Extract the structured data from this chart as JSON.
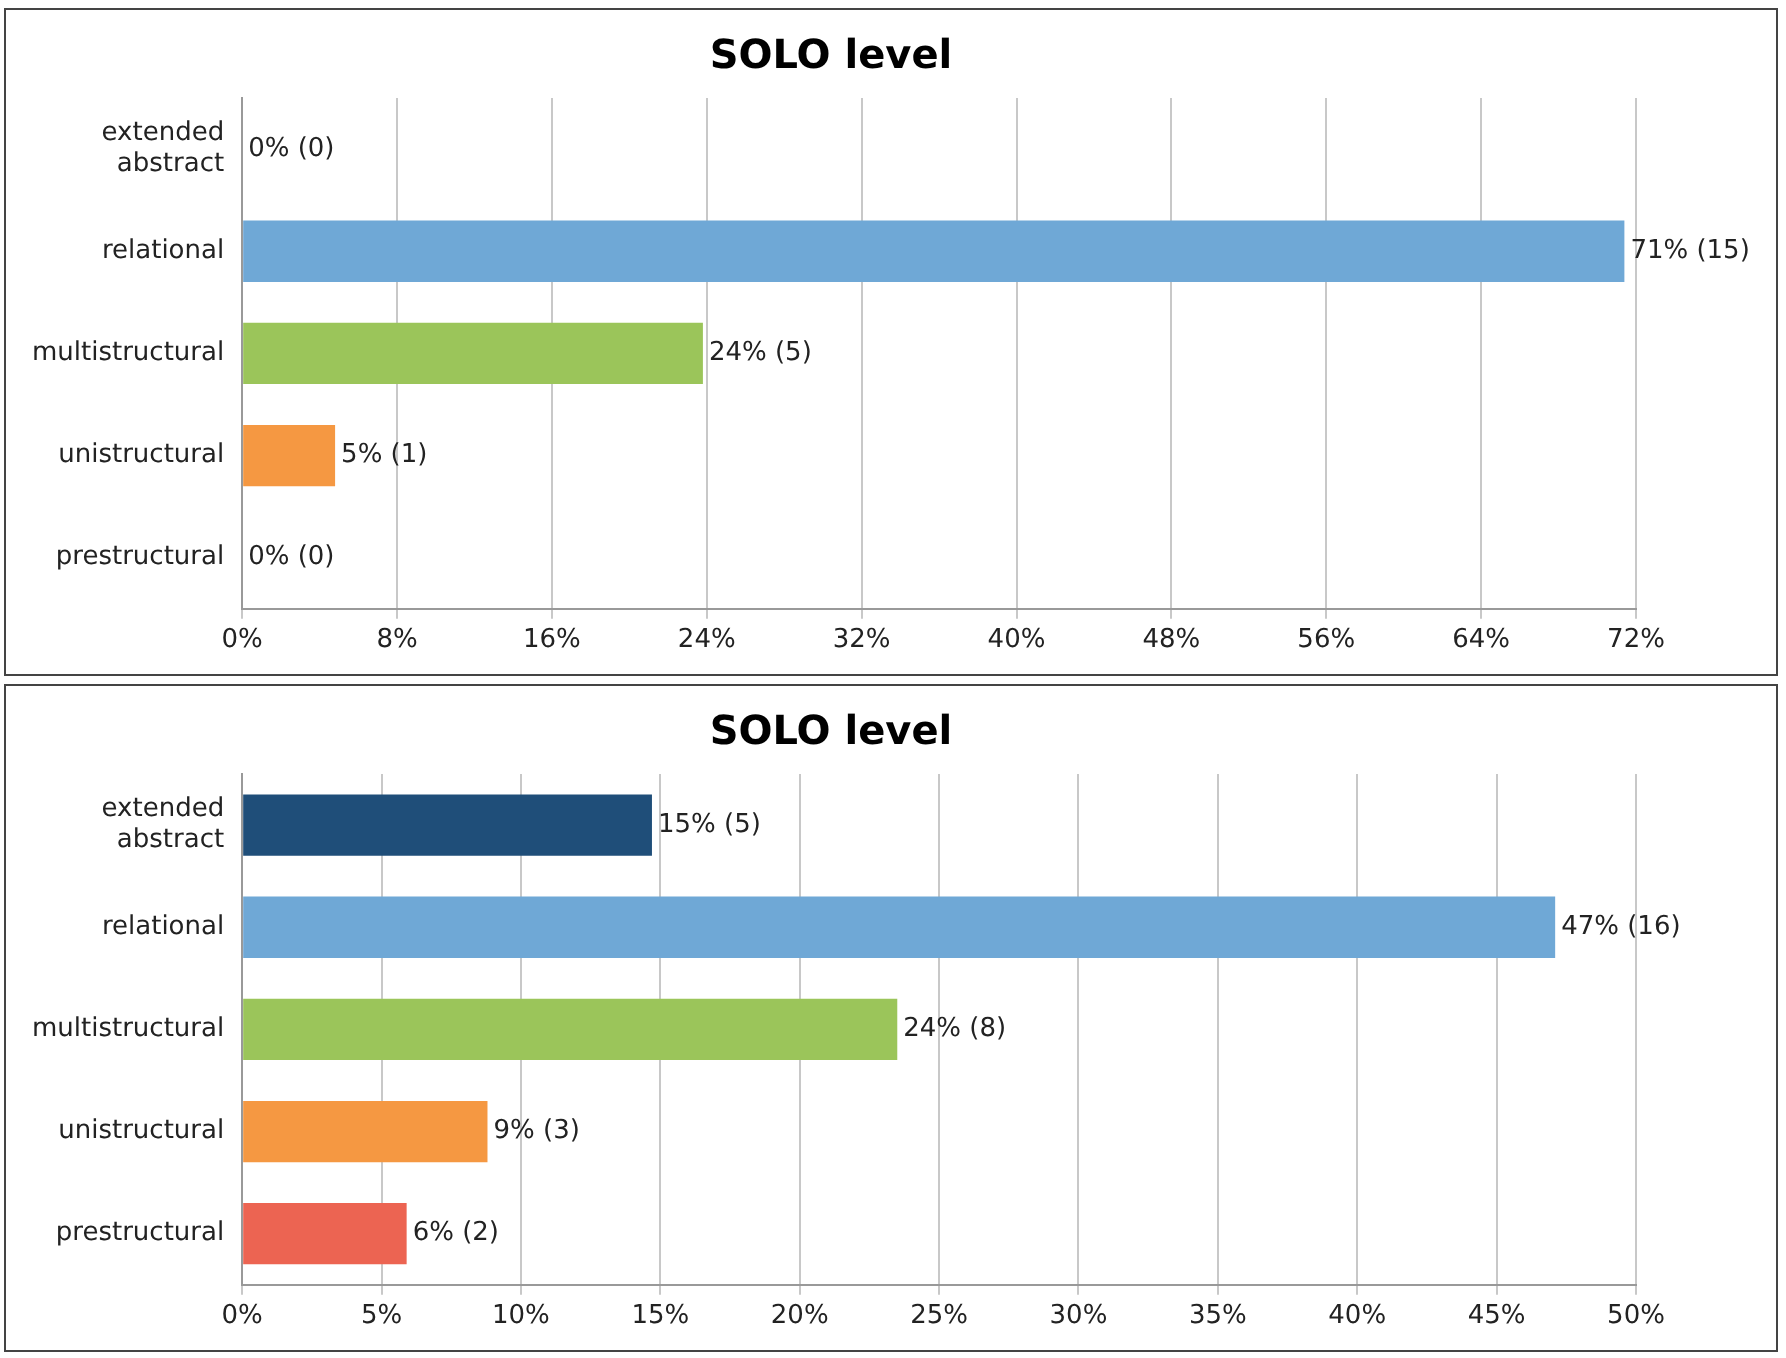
{
  "chart_data": [
    {
      "type": "bar",
      "title": "SOLO level",
      "orientation": "horizontal",
      "categories": [
        "extended abstract",
        "relational",
        "multistructural",
        "unistructural",
        "prestructural"
      ],
      "values": [
        0,
        71.4,
        23.8,
        4.8,
        0
      ],
      "colors": [
        "#1f4e79",
        "#6fa8d6",
        "#9bc55a",
        "#f59842",
        "#ec6452"
      ],
      "value_labels": [
        "0% (0)",
        "71% (15)",
        "24% (5)",
        "5% (1)",
        "0% (0)"
      ],
      "xlim": [
        0,
        72
      ],
      "xticks": [
        {
          "value": 0,
          "label": "0%"
        },
        {
          "value": 8,
          "label": "8%"
        },
        {
          "value": 16,
          "label": "16%"
        },
        {
          "value": 24,
          "label": "24%"
        },
        {
          "value": 32,
          "label": "32%"
        },
        {
          "value": 40,
          "label": "40%"
        },
        {
          "value": 48,
          "label": "48%"
        },
        {
          "value": 56,
          "label": "56%"
        },
        {
          "value": 64,
          "label": "64%"
        },
        {
          "value": 72,
          "label": "72%"
        }
      ],
      "grid": "x",
      "legend": false
    },
    {
      "type": "bar",
      "title": "SOLO level",
      "orientation": "horizontal",
      "categories": [
        "extended abstract",
        "relational",
        "multistructural",
        "unistructural",
        "prestructural"
      ],
      "values": [
        14.7,
        47.1,
        23.5,
        8.8,
        5.9
      ],
      "colors": [
        "#1f4e79",
        "#6fa8d6",
        "#9bc55a",
        "#f59842",
        "#ec6452"
      ],
      "value_labels": [
        "15% (5)",
        "47% (16)",
        "24% (8)",
        "9% (3)",
        "6% (2)"
      ],
      "xlim": [
        0,
        50
      ],
      "xticks": [
        {
          "value": 0,
          "label": "0%"
        },
        {
          "value": 5,
          "label": "5%"
        },
        {
          "value": 10,
          "label": "10%"
        },
        {
          "value": 15,
          "label": "15%"
        },
        {
          "value": 20,
          "label": "20%"
        },
        {
          "value": 25,
          "label": "25%"
        },
        {
          "value": 30,
          "label": "30%"
        },
        {
          "value": 35,
          "label": "35%"
        },
        {
          "value": 40,
          "label": "40%"
        },
        {
          "value": 45,
          "label": "45%"
        },
        {
          "value": 50,
          "label": "50%"
        }
      ],
      "grid": "x",
      "legend": false
    }
  ]
}
